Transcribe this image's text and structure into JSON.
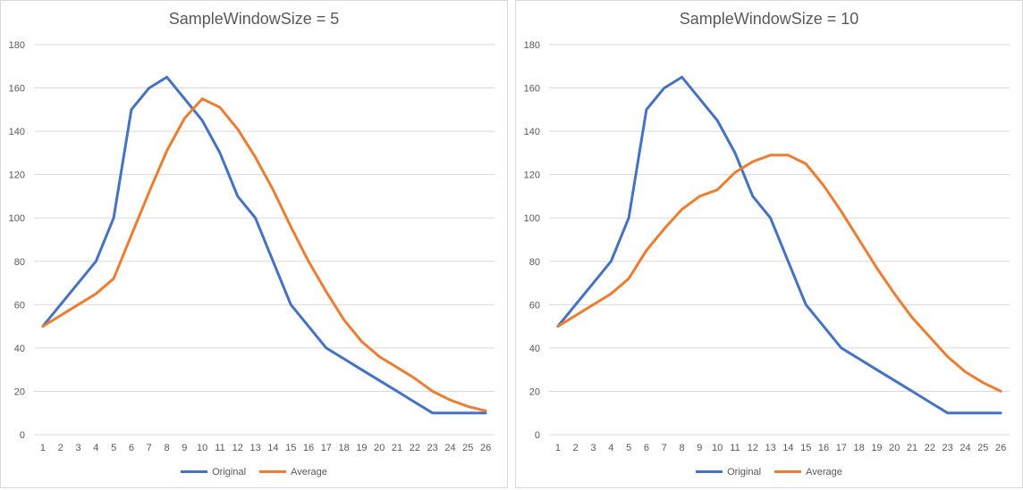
{
  "colors": {
    "original": "#4472C4",
    "average": "#ED7D31",
    "grid": "#d9d9d9",
    "text": "#595959"
  },
  "legend": {
    "original": "Original",
    "average": "Average"
  },
  "chart_data": [
    {
      "type": "line",
      "title": "SampleWindowSize = 5",
      "x": [
        1,
        2,
        3,
        4,
        5,
        6,
        7,
        8,
        9,
        10,
        11,
        12,
        13,
        14,
        15,
        16,
        17,
        18,
        19,
        20,
        21,
        22,
        23,
        24,
        25,
        26
      ],
      "ylim": [
        0,
        180
      ],
      "yticks": [
        0,
        20,
        40,
        60,
        80,
        100,
        120,
        140,
        160,
        180
      ],
      "grid": true,
      "legend_position": "bottom",
      "series": [
        {
          "name": "Original",
          "color": "#4472C4",
          "values": [
            50,
            60,
            70,
            80,
            100,
            150,
            160,
            165,
            155,
            145,
            130,
            110,
            100,
            80,
            60,
            50,
            40,
            35,
            30,
            25,
            20,
            15,
            10,
            10,
            10,
            10
          ]
        },
        {
          "name": "Average",
          "color": "#ED7D31",
          "values": [
            50,
            55,
            60,
            65,
            72,
            92,
            112,
            131,
            146,
            155,
            151,
            141,
            128,
            113,
            96,
            80,
            66,
            53,
            43,
            36,
            31,
            26,
            20,
            16,
            13,
            11
          ]
        }
      ]
    },
    {
      "type": "line",
      "title": "SampleWindowSize = 10",
      "x": [
        1,
        2,
        3,
        4,
        5,
        6,
        7,
        8,
        9,
        10,
        11,
        12,
        13,
        14,
        15,
        16,
        17,
        18,
        19,
        20,
        21,
        22,
        23,
        24,
        25,
        26
      ],
      "ylim": [
        0,
        180
      ],
      "yticks": [
        0,
        20,
        40,
        60,
        80,
        100,
        120,
        140,
        160,
        180
      ],
      "grid": true,
      "legend_position": "bottom",
      "series": [
        {
          "name": "Original",
          "color": "#4472C4",
          "values": [
            50,
            60,
            70,
            80,
            100,
            150,
            160,
            165,
            155,
            145,
            130,
            110,
            100,
            80,
            60,
            50,
            40,
            35,
            30,
            25,
            20,
            15,
            10,
            10,
            10,
            10
          ]
        },
        {
          "name": "Average",
          "color": "#ED7D31",
          "values": [
            50,
            55,
            60,
            65,
            72,
            85,
            95,
            104,
            110,
            113,
            121,
            126,
            129,
            129,
            125,
            115,
            103,
            90,
            77,
            65,
            54,
            45,
            36,
            29,
            24,
            20
          ]
        }
      ]
    }
  ]
}
